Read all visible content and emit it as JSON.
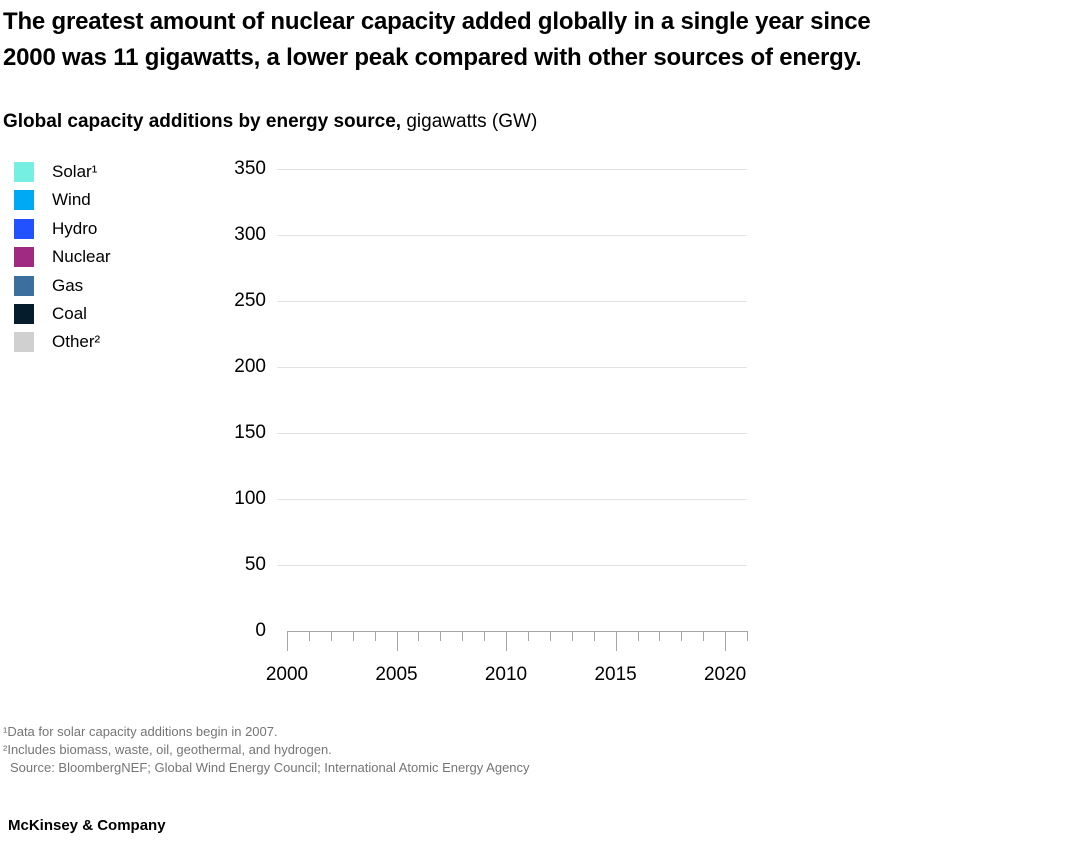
{
  "header": {
    "title_lines": [
      "The greatest amount of nuclear capacity added globally in a single year since",
      "2000 was 11 gigawatts, a lower peak compared with other sources of energy."
    ],
    "subtitle_bold": "Global capacity additions by energy source,",
    "subtitle_regular": " gigawatts (GW)"
  },
  "chart_data": {
    "type": "area",
    "title": "Global capacity additions by energy source",
    "unit_label": "gigawatts (GW)",
    "ylim": [
      0,
      350
    ],
    "xlim": [
      2000,
      2021
    ],
    "yticks": [
      350,
      300,
      250,
      200,
      150,
      100,
      50,
      0
    ],
    "xticks": [
      2000,
      2005,
      2010,
      2015,
      2020
    ],
    "x_minor_tick_step": 1,
    "grid": "horizontal",
    "legend_position": "left",
    "series": [
      {
        "id": "solar",
        "name": "Solar¹",
        "color": "#75efe2",
        "values": []
      },
      {
        "id": "wind",
        "name": "Wind",
        "color": "#00a9f4",
        "values": []
      },
      {
        "id": "hydro",
        "name": "Hydro",
        "color": "#2251ff",
        "values": []
      },
      {
        "id": "nuclear",
        "name": "Nuclear",
        "color": "#a02a82",
        "values": []
      },
      {
        "id": "gas",
        "name": "Gas",
        "color": "#3c6e9e",
        "values": []
      },
      {
        "id": "coal",
        "name": "Coal",
        "color": "#051c2c",
        "values": []
      },
      {
        "id": "other",
        "name": "Other²",
        "color": "#d0d0d0",
        "values": []
      }
    ],
    "note": "Plot area is empty: axes, gridlines and legend only, no series drawn"
  },
  "footnotes": {
    "fn1": "¹Data for solar capacity additions begin in 2007.",
    "fn2": "²Includes biomass, waste, oil, geothermal, and hydrogen.",
    "source": "Source: BloombergNEF; Global Wind Energy Council; International Atomic Energy Agency"
  },
  "footer": {
    "brand": "McKinsey & Company"
  }
}
